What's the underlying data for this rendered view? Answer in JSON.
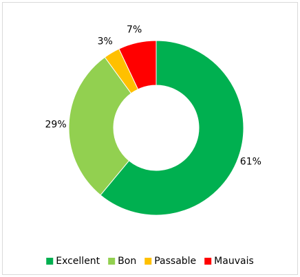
{
  "chart_data": {
    "type": "doughnut",
    "categories": [
      "Excellent",
      "Bon",
      "Passable",
      "Mauvais"
    ],
    "values": [
      61,
      29,
      3,
      7
    ],
    "value_labels": [
      "61%",
      "29%",
      "3%",
      "7%"
    ],
    "colors": [
      "#00b050",
      "#92d050",
      "#ffc000",
      "#ff0000"
    ],
    "legend": "bottom"
  }
}
